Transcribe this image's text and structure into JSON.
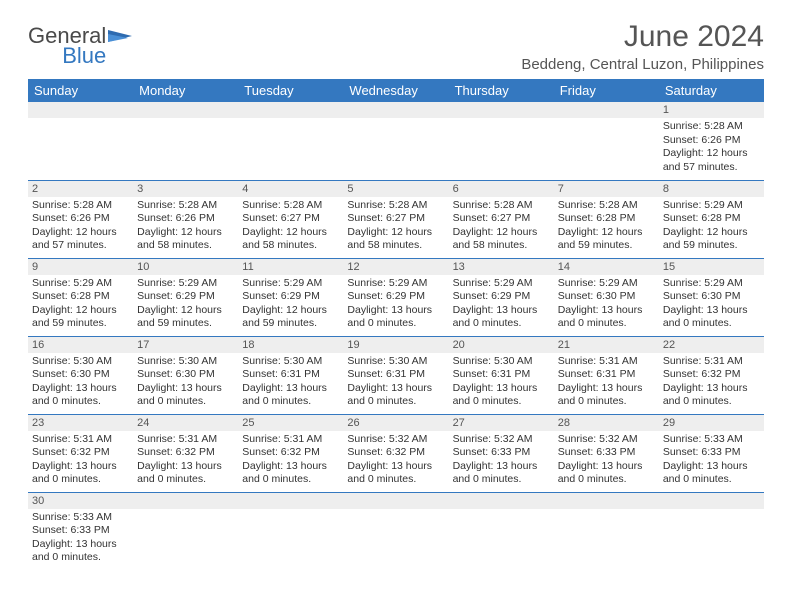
{
  "logo": {
    "line1": "General",
    "line2": "Blue"
  },
  "title": "June 2024",
  "location": "Beddeng, Central Luzon, Philippines",
  "colors": {
    "header_bg": "#3478c0",
    "daynum_bg": "#eeeeee",
    "row_border": "#3478c0",
    "text": "#333333"
  },
  "day_headers": [
    "Sunday",
    "Monday",
    "Tuesday",
    "Wednesday",
    "Thursday",
    "Friday",
    "Saturday"
  ],
  "weeks": [
    [
      null,
      null,
      null,
      null,
      null,
      null,
      {
        "d": "1",
        "sr": "Sunrise: 5:28 AM",
        "ss": "Sunset: 6:26 PM",
        "dl1": "Daylight: 12 hours",
        "dl2": "and 57 minutes."
      }
    ],
    [
      {
        "d": "2",
        "sr": "Sunrise: 5:28 AM",
        "ss": "Sunset: 6:26 PM",
        "dl1": "Daylight: 12 hours",
        "dl2": "and 57 minutes."
      },
      {
        "d": "3",
        "sr": "Sunrise: 5:28 AM",
        "ss": "Sunset: 6:26 PM",
        "dl1": "Daylight: 12 hours",
        "dl2": "and 58 minutes."
      },
      {
        "d": "4",
        "sr": "Sunrise: 5:28 AM",
        "ss": "Sunset: 6:27 PM",
        "dl1": "Daylight: 12 hours",
        "dl2": "and 58 minutes."
      },
      {
        "d": "5",
        "sr": "Sunrise: 5:28 AM",
        "ss": "Sunset: 6:27 PM",
        "dl1": "Daylight: 12 hours",
        "dl2": "and 58 minutes."
      },
      {
        "d": "6",
        "sr": "Sunrise: 5:28 AM",
        "ss": "Sunset: 6:27 PM",
        "dl1": "Daylight: 12 hours",
        "dl2": "and 58 minutes."
      },
      {
        "d": "7",
        "sr": "Sunrise: 5:28 AM",
        "ss": "Sunset: 6:28 PM",
        "dl1": "Daylight: 12 hours",
        "dl2": "and 59 minutes."
      },
      {
        "d": "8",
        "sr": "Sunrise: 5:29 AM",
        "ss": "Sunset: 6:28 PM",
        "dl1": "Daylight: 12 hours",
        "dl2": "and 59 minutes."
      }
    ],
    [
      {
        "d": "9",
        "sr": "Sunrise: 5:29 AM",
        "ss": "Sunset: 6:28 PM",
        "dl1": "Daylight: 12 hours",
        "dl2": "and 59 minutes."
      },
      {
        "d": "10",
        "sr": "Sunrise: 5:29 AM",
        "ss": "Sunset: 6:29 PM",
        "dl1": "Daylight: 12 hours",
        "dl2": "and 59 minutes."
      },
      {
        "d": "11",
        "sr": "Sunrise: 5:29 AM",
        "ss": "Sunset: 6:29 PM",
        "dl1": "Daylight: 12 hours",
        "dl2": "and 59 minutes."
      },
      {
        "d": "12",
        "sr": "Sunrise: 5:29 AM",
        "ss": "Sunset: 6:29 PM",
        "dl1": "Daylight: 13 hours",
        "dl2": "and 0 minutes."
      },
      {
        "d": "13",
        "sr": "Sunrise: 5:29 AM",
        "ss": "Sunset: 6:29 PM",
        "dl1": "Daylight: 13 hours",
        "dl2": "and 0 minutes."
      },
      {
        "d": "14",
        "sr": "Sunrise: 5:29 AM",
        "ss": "Sunset: 6:30 PM",
        "dl1": "Daylight: 13 hours",
        "dl2": "and 0 minutes."
      },
      {
        "d": "15",
        "sr": "Sunrise: 5:29 AM",
        "ss": "Sunset: 6:30 PM",
        "dl1": "Daylight: 13 hours",
        "dl2": "and 0 minutes."
      }
    ],
    [
      {
        "d": "16",
        "sr": "Sunrise: 5:30 AM",
        "ss": "Sunset: 6:30 PM",
        "dl1": "Daylight: 13 hours",
        "dl2": "and 0 minutes."
      },
      {
        "d": "17",
        "sr": "Sunrise: 5:30 AM",
        "ss": "Sunset: 6:30 PM",
        "dl1": "Daylight: 13 hours",
        "dl2": "and 0 minutes."
      },
      {
        "d": "18",
        "sr": "Sunrise: 5:30 AM",
        "ss": "Sunset: 6:31 PM",
        "dl1": "Daylight: 13 hours",
        "dl2": "and 0 minutes."
      },
      {
        "d": "19",
        "sr": "Sunrise: 5:30 AM",
        "ss": "Sunset: 6:31 PM",
        "dl1": "Daylight: 13 hours",
        "dl2": "and 0 minutes."
      },
      {
        "d": "20",
        "sr": "Sunrise: 5:30 AM",
        "ss": "Sunset: 6:31 PM",
        "dl1": "Daylight: 13 hours",
        "dl2": "and 0 minutes."
      },
      {
        "d": "21",
        "sr": "Sunrise: 5:31 AM",
        "ss": "Sunset: 6:31 PM",
        "dl1": "Daylight: 13 hours",
        "dl2": "and 0 minutes."
      },
      {
        "d": "22",
        "sr": "Sunrise: 5:31 AM",
        "ss": "Sunset: 6:32 PM",
        "dl1": "Daylight: 13 hours",
        "dl2": "and 0 minutes."
      }
    ],
    [
      {
        "d": "23",
        "sr": "Sunrise: 5:31 AM",
        "ss": "Sunset: 6:32 PM",
        "dl1": "Daylight: 13 hours",
        "dl2": "and 0 minutes."
      },
      {
        "d": "24",
        "sr": "Sunrise: 5:31 AM",
        "ss": "Sunset: 6:32 PM",
        "dl1": "Daylight: 13 hours",
        "dl2": "and 0 minutes."
      },
      {
        "d": "25",
        "sr": "Sunrise: 5:31 AM",
        "ss": "Sunset: 6:32 PM",
        "dl1": "Daylight: 13 hours",
        "dl2": "and 0 minutes."
      },
      {
        "d": "26",
        "sr": "Sunrise: 5:32 AM",
        "ss": "Sunset: 6:32 PM",
        "dl1": "Daylight: 13 hours",
        "dl2": "and 0 minutes."
      },
      {
        "d": "27",
        "sr": "Sunrise: 5:32 AM",
        "ss": "Sunset: 6:33 PM",
        "dl1": "Daylight: 13 hours",
        "dl2": "and 0 minutes."
      },
      {
        "d": "28",
        "sr": "Sunrise: 5:32 AM",
        "ss": "Sunset: 6:33 PM",
        "dl1": "Daylight: 13 hours",
        "dl2": "and 0 minutes."
      },
      {
        "d": "29",
        "sr": "Sunrise: 5:33 AM",
        "ss": "Sunset: 6:33 PM",
        "dl1": "Daylight: 13 hours",
        "dl2": "and 0 minutes."
      }
    ],
    [
      {
        "d": "30",
        "sr": "Sunrise: 5:33 AM",
        "ss": "Sunset: 6:33 PM",
        "dl1": "Daylight: 13 hours",
        "dl2": "and 0 minutes."
      },
      null,
      null,
      null,
      null,
      null,
      null
    ]
  ]
}
